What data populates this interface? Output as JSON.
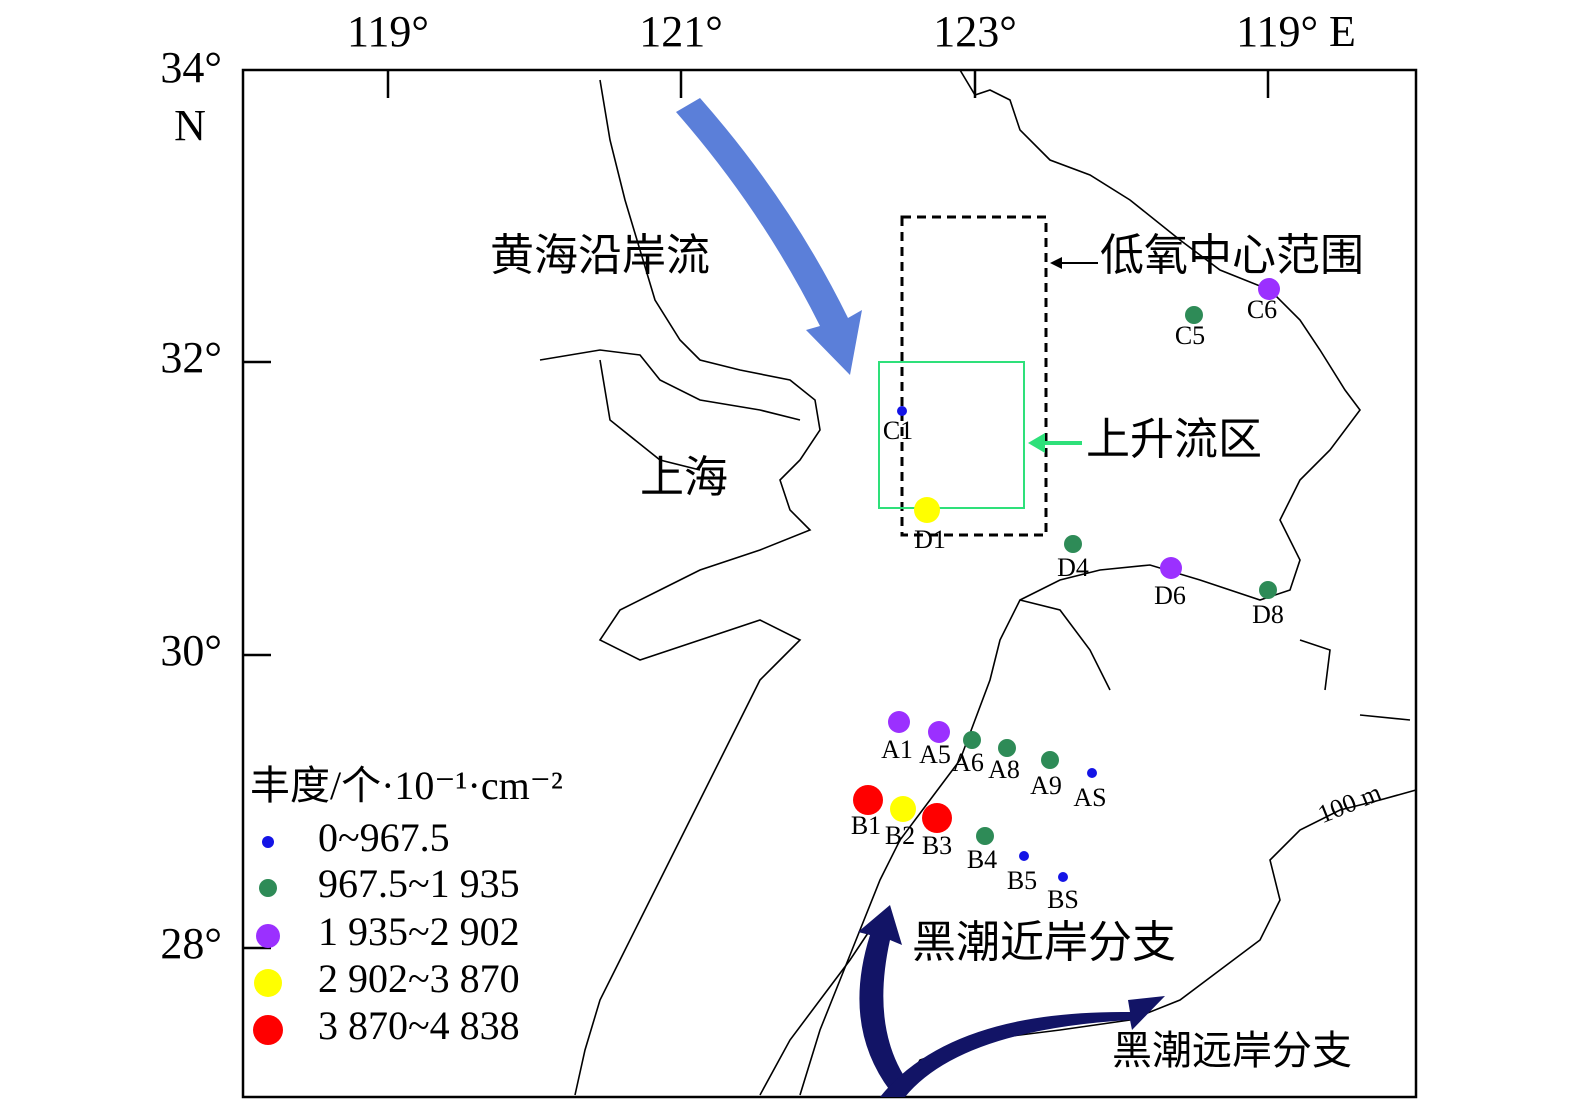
{
  "axes": {
    "top_labels": [
      "119°",
      "121°",
      "123°",
      "119° E"
    ],
    "left_labels": [
      "34°",
      "N",
      "32°",
      "30°",
      "28°"
    ]
  },
  "annotations": {
    "yellow_sea_current": "黄海沿岸流",
    "shanghai": "上海",
    "hypoxia_center": "低氧中心范围",
    "upwelling": "上升流区",
    "kuroshio_nearshore": "黑潮近岸分支",
    "kuroshio_offshore": "黑潮远岸分支",
    "isobath": "100 m"
  },
  "legend": {
    "title": "丰度/个·10⁻¹·cm⁻²",
    "classes": [
      {
        "label": "0~967.5",
        "color": "#1414e6",
        "stations": [
          "C1",
          "AS",
          "B5",
          "BS"
        ]
      },
      {
        "label": "967.5~1 935",
        "color": "#2e8b57",
        "stations": [
          "C5",
          "D4",
          "D8",
          "A6",
          "A8",
          "A9",
          "B4"
        ]
      },
      {
        "label": "1 935~2 902",
        "color": "#9b30ff",
        "stations": [
          "C6",
          "D6",
          "A1",
          "A5"
        ]
      },
      {
        "label": "2 902~3 870",
        "color": "#ffff00",
        "stations": [
          "D1",
          "B2"
        ]
      },
      {
        "label": "3 870~4 838",
        "color": "#ff0000",
        "stations": [
          "B1",
          "B3"
        ]
      }
    ]
  }
}
